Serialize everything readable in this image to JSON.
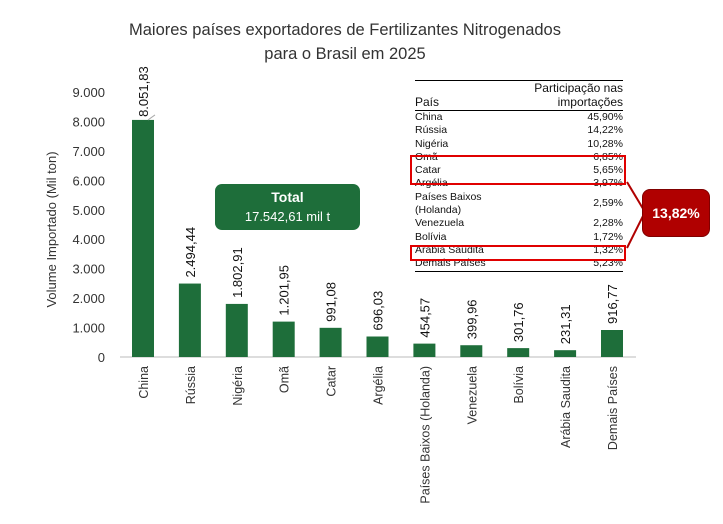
{
  "chart_data": {
    "type": "bar",
    "title_line1": "Maiores países exportadores de Fertilizantes Nitrogenados",
    "title_line2": "para o Brasil em 2025",
    "ylabel": "Volume Importado (Mil ton)",
    "ylim": [
      0,
      9000
    ],
    "yticks": [
      "0",
      "1.000",
      "2.000",
      "3.000",
      "4.000",
      "5.000",
      "6.000",
      "7.000",
      "8.000",
      "9.000"
    ],
    "categories": [
      "China",
      "Rússia",
      "Nigéria",
      "Omã",
      "Catar",
      "Argélia",
      "Países Baixos (Holanda)",
      "Venezuela",
      "Bolívia",
      "Arábia Saudita",
      "Demais Países"
    ],
    "values": [
      8051.83,
      2494.44,
      1802.91,
      1201.95,
      991.08,
      696.03,
      454.57,
      399.96,
      301.76,
      231.31,
      916.77
    ],
    "value_labels": [
      "8.051,83",
      "2.494,44",
      "1.802,91",
      "1.201,95",
      "991,08",
      "696,03",
      "454,57",
      "399,96",
      "301,76",
      "231,31",
      "916,77"
    ],
    "bar_color": "#1e6e3a"
  },
  "total": {
    "label": "Total",
    "value": "17.542,61 mil t"
  },
  "table": {
    "header_country": "País",
    "header_share": "Participação nas importações",
    "rows": [
      {
        "country": "China",
        "share": "45,90%"
      },
      {
        "country": "Rússia",
        "share": "14,22%"
      },
      {
        "country": "Nigéria",
        "share": "10,28%"
      },
      {
        "country": "Omã",
        "share": "6,85%"
      },
      {
        "country": "Catar",
        "share": "5,65%"
      },
      {
        "country": "Argélia",
        "share": "3,97%"
      },
      {
        "country": "Países Baixos (Holanda)",
        "share": "2,59%"
      },
      {
        "country": "Venezuela",
        "share": "2,28%"
      },
      {
        "country": "Bolívia",
        "share": "1,72%"
      },
      {
        "country": "Arábia Saudita",
        "share": "1,32%"
      },
      {
        "country": "Demais Países",
        "share": "5,23%"
      }
    ]
  },
  "highlight_sum": "13,82%",
  "highlight_color": "#e00000"
}
